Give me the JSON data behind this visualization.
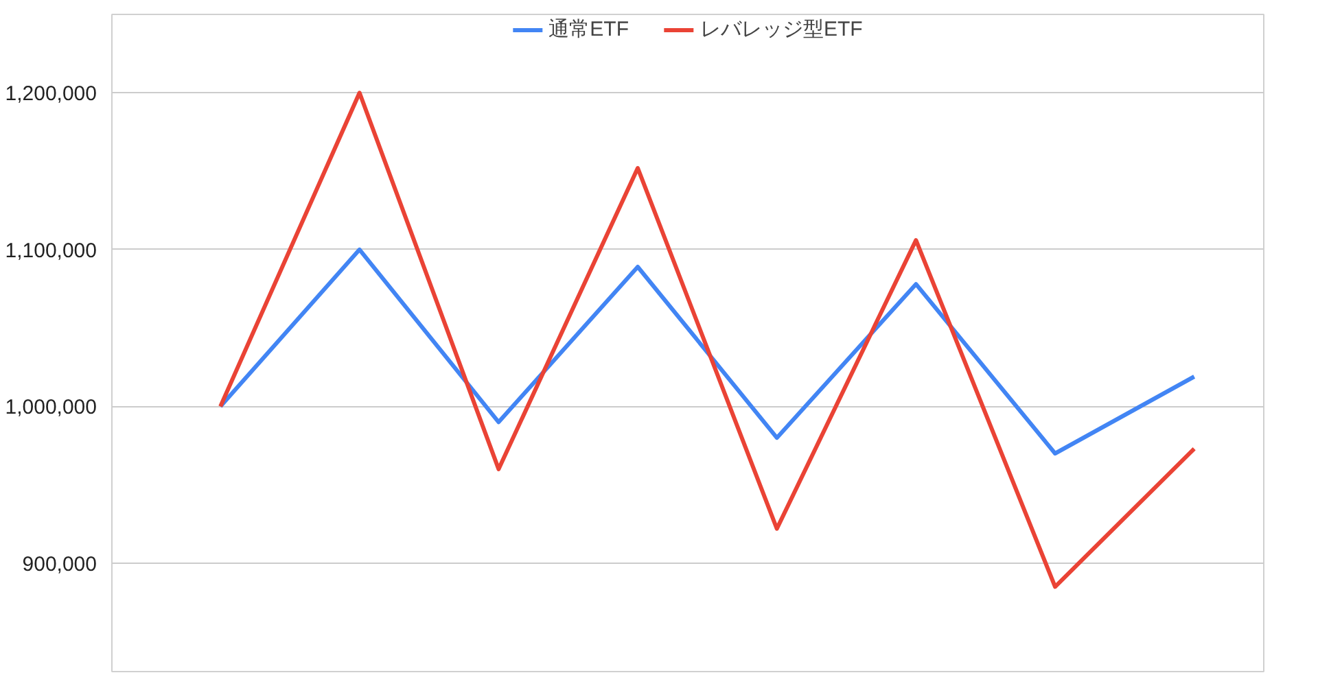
{
  "chart_data": {
    "type": "line",
    "categories": [
      null,
      null,
      null,
      null,
      null,
      null,
      null,
      null
    ],
    "series": [
      {
        "name": "通常ETF",
        "color": "#4285f4",
        "values": [
          1000000,
          1100000,
          990000,
          1089000,
          980000,
          1078000,
          970000,
          1019000
        ]
      },
      {
        "name": "レバレッジ型ETF",
        "color": "#ea4335",
        "values": [
          1000000,
          1200000,
          960000,
          1152000,
          922000,
          1106000,
          885000,
          973000
        ]
      }
    ],
    "ylim": [
      830000,
      1250000
    ],
    "yticks": [
      {
        "value": 900000,
        "label": "900,000"
      },
      {
        "value": 1000000,
        "label": "1,000,000"
      },
      {
        "value": 1100000,
        "label": "1,100,000"
      },
      {
        "value": 1200000,
        "label": "1,200,000"
      }
    ],
    "grid": "y",
    "legend": "top",
    "tick_labels": "y",
    "marker": "none",
    "line_style": "solid"
  }
}
